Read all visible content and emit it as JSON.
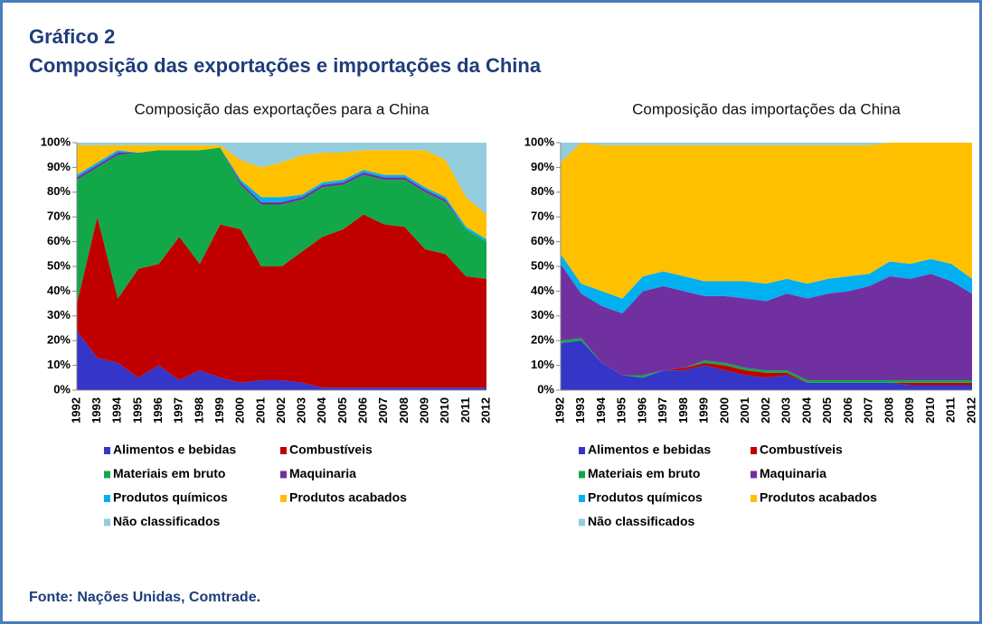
{
  "header": {
    "label": "Gráfico 2",
    "title": "Composição das exportações e importações da China"
  },
  "source": "Fonte: Nações Unidas, Comtrade.",
  "chart_data": [
    {
      "type": "stacked_area",
      "title": "Composição das exportações para a China",
      "categories": [
        "1992",
        "1993",
        "1994",
        "1995",
        "1996",
        "1997",
        "1998",
        "1999",
        "2000",
        "2001",
        "2002",
        "2003",
        "2004",
        "2005",
        "2006",
        "2007",
        "2008",
        "2009",
        "2010",
        "2011",
        "2012"
      ],
      "ylim": [
        0,
        100
      ],
      "yticks": [
        {
          "value": 0,
          "label": "0%"
        },
        {
          "value": 10,
          "label": "10%"
        },
        {
          "value": 20,
          "label": "20%"
        },
        {
          "value": 30,
          "label": "30%"
        },
        {
          "value": 40,
          "label": "40%"
        },
        {
          "value": 50,
          "label": "50%"
        },
        {
          "value": 60,
          "label": "60%"
        },
        {
          "value": 70,
          "label": "70%"
        },
        {
          "value": 80,
          "label": "80%"
        },
        {
          "value": 90,
          "label": "90%"
        },
        {
          "value": 100,
          "label": "100%"
        }
      ],
      "series": [
        {
          "name": "Alimentos e bebidas",
          "color": "#3535c8",
          "values": [
            24,
            13,
            11,
            5,
            10,
            4,
            8,
            5,
            3,
            4,
            4,
            3,
            1,
            1,
            1,
            1,
            1,
            1,
            1,
            1,
            1
          ]
        },
        {
          "name": "Combustíveis",
          "color": "#c00000",
          "values": [
            11,
            57,
            26,
            44,
            41,
            58,
            43,
            62,
            62,
            46,
            46,
            53,
            61,
            64,
            70,
            66,
            65,
            56,
            54,
            45,
            44
          ]
        },
        {
          "name": "Materiais  em bruto",
          "color": "#12a84a",
          "values": [
            50,
            20,
            58,
            47,
            46,
            35,
            46,
            31,
            18,
            25,
            25,
            21,
            20,
            18,
            16,
            18,
            19,
            23,
            21,
            19,
            15
          ]
        },
        {
          "name": "Maquinaria",
          "color": "#7030a0",
          "values": [
            1,
            1,
            1,
            0,
            0,
            0,
            0,
            0,
            1,
            1,
            1,
            1,
            1,
            1,
            1,
            1,
            1,
            1,
            1,
            0,
            0
          ]
        },
        {
          "name": "Produtos químicos",
          "color": "#00b0f0",
          "values": [
            1,
            1,
            1,
            0,
            0,
            0,
            0,
            0,
            1,
            2,
            2,
            1,
            1,
            1,
            1,
            1,
            1,
            1,
            1,
            1,
            1
          ]
        },
        {
          "name": "Produtos acabados",
          "color": "#ffc000",
          "values": [
            12,
            7,
            2,
            3,
            2,
            2,
            2,
            1,
            8,
            12,
            14,
            16,
            12,
            11,
            8,
            10,
            10,
            15,
            15,
            12,
            10
          ]
        },
        {
          "name": "Não classificados",
          "color": "#93cddd",
          "values": [
            1,
            1,
            1,
            1,
            1,
            1,
            1,
            1,
            7,
            10,
            8,
            5,
            4,
            4,
            3,
            3,
            3,
            3,
            7,
            22,
            29
          ]
        }
      ]
    },
    {
      "type": "stacked_area",
      "title": "Composição das importações da China",
      "categories": [
        "1992",
        "1993",
        "1994",
        "1995",
        "1996",
        "1997",
        "1998",
        "1999",
        "2000",
        "2001",
        "2002",
        "2003",
        "2004",
        "2005",
        "2006",
        "2007",
        "2008",
        "2009",
        "2010",
        "2011",
        "2012"
      ],
      "ylim": [
        0,
        100
      ],
      "yticks": [
        {
          "value": 0,
          "label": "0%"
        },
        {
          "value": 10,
          "label": "10%"
        },
        {
          "value": 20,
          "label": "20%"
        },
        {
          "value": 30,
          "label": "30%"
        },
        {
          "value": 40,
          "label": "40%"
        },
        {
          "value": 50,
          "label": "50%"
        },
        {
          "value": 60,
          "label": "60%"
        },
        {
          "value": 70,
          "label": "70%"
        },
        {
          "value": 80,
          "label": "80%"
        },
        {
          "value": 90,
          "label": "90%"
        },
        {
          "value": 100,
          "label": "100%"
        }
      ],
      "series": [
        {
          "name": "Alimentos e bebidas",
          "color": "#3535c8",
          "values": [
            19,
            20,
            11,
            6,
            5,
            8,
            8,
            10,
            8,
            6,
            5,
            6,
            3,
            3,
            3,
            3,
            3,
            2,
            2,
            2,
            2
          ]
        },
        {
          "name": "Combustíveis",
          "color": "#c00000",
          "values": [
            0,
            0,
            0,
            0,
            0,
            0,
            1,
            1,
            2,
            2,
            2,
            1,
            0,
            0,
            0,
            0,
            0,
            1,
            1,
            1,
            1
          ]
        },
        {
          "name": "Materiais em bruto",
          "color": "#12a84a",
          "values": [
            1,
            1,
            0,
            0,
            1,
            0,
            0,
            1,
            1,
            1,
            1,
            1,
            1,
            1,
            1,
            1,
            1,
            1,
            1,
            1,
            1
          ]
        },
        {
          "name": "Maquinaria",
          "color": "#7030a0",
          "values": [
            31,
            18,
            23,
            25,
            34,
            34,
            31,
            26,
            27,
            28,
            28,
            31,
            33,
            35,
            36,
            38,
            42,
            41,
            43,
            40,
            35
          ]
        },
        {
          "name": "Produtos químicos",
          "color": "#00b0f0",
          "values": [
            4,
            4,
            6,
            6,
            6,
            6,
            6,
            6,
            6,
            7,
            7,
            6,
            6,
            6,
            6,
            5,
            6,
            6,
            6,
            7,
            6
          ]
        },
        {
          "name": "Produtos acabados",
          "color": "#ffc000",
          "values": [
            37,
            57,
            59,
            62,
            53,
            51,
            53,
            55,
            55,
            55,
            56,
            54,
            56,
            54,
            53,
            52,
            48,
            49,
            47,
            49,
            55
          ]
        },
        {
          "name": "Não classificados",
          "color": "#93cddd",
          "values": [
            8,
            0,
            1,
            1,
            1,
            1,
            1,
            1,
            1,
            1,
            1,
            1,
            1,
            1,
            1,
            1,
            0,
            0,
            0,
            0,
            0
          ]
        }
      ]
    }
  ]
}
